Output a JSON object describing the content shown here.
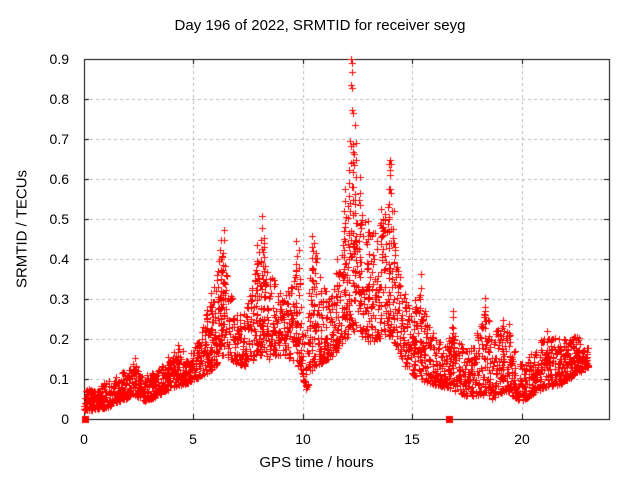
{
  "chart_data": {
    "type": "scatter",
    "title": "Day 196 of 2022, SRMTID for receiver seyg",
    "xlabel": "GPS time / hours",
    "ylabel": "SRMTID / TECUs",
    "xlim": [
      0,
      24
    ],
    "ylim": [
      0,
      0.9
    ],
    "xtick_values": [
      0,
      5,
      10,
      15,
      20
    ],
    "xtick_labels": [
      "0",
      "5",
      "10",
      "15",
      "20"
    ],
    "ytick_values": [
      0,
      0.1,
      0.2,
      0.3,
      0.4,
      0.5,
      0.6,
      0.7,
      0.8,
      0.9
    ],
    "ytick_labels": [
      "0",
      "0.1",
      "0.2",
      "0.3",
      "0.4",
      "0.5",
      "0.6",
      "0.7",
      "0.8",
      "0.9"
    ],
    "grid": true,
    "legend": "none",
    "marker": "plus",
    "marker_color": "#ff0000",
    "grid_color": "#b9b9b9",
    "border_color": "#000000",
    "series": [
      {
        "name": "srmtid-points",
        "marker": "plus",
        "x_start": 0.0,
        "x_end": 23.05,
        "band_envelope": [
          [
            0.0,
            0.02,
            0.075
          ],
          [
            0.6,
            0.025,
            0.08
          ],
          [
            1.1,
            0.03,
            0.095
          ],
          [
            1.6,
            0.045,
            0.115
          ],
          [
            2.0,
            0.05,
            0.13
          ],
          [
            2.35,
            0.06,
            0.145
          ],
          [
            2.7,
            0.045,
            0.105
          ],
          [
            3.1,
            0.05,
            0.115
          ],
          [
            3.6,
            0.065,
            0.14
          ],
          [
            4.1,
            0.08,
            0.17
          ],
          [
            4.45,
            0.085,
            0.175
          ],
          [
            4.8,
            0.09,
            0.16
          ],
          [
            5.1,
            0.1,
            0.185
          ],
          [
            5.45,
            0.11,
            0.23
          ],
          [
            5.8,
            0.12,
            0.3
          ],
          [
            6.1,
            0.14,
            0.38
          ],
          [
            6.35,
            0.16,
            0.44
          ],
          [
            6.6,
            0.15,
            0.33
          ],
          [
            6.95,
            0.14,
            0.28
          ],
          [
            7.3,
            0.13,
            0.27
          ],
          [
            7.65,
            0.14,
            0.32
          ],
          [
            7.95,
            0.16,
            0.42
          ],
          [
            8.2,
            0.16,
            0.46
          ],
          [
            8.45,
            0.15,
            0.38
          ],
          [
            8.8,
            0.16,
            0.33
          ],
          [
            9.15,
            0.16,
            0.3
          ],
          [
            9.5,
            0.15,
            0.35
          ],
          [
            9.8,
            0.13,
            0.42
          ],
          [
            10.05,
            0.09,
            0.25
          ],
          [
            10.15,
            0.07,
            0.18
          ],
          [
            10.35,
            0.11,
            0.4
          ],
          [
            10.55,
            0.13,
            0.44
          ],
          [
            10.9,
            0.14,
            0.33
          ],
          [
            11.25,
            0.15,
            0.31
          ],
          [
            11.6,
            0.17,
            0.38
          ],
          [
            11.95,
            0.2,
            0.5
          ],
          [
            12.25,
            0.22,
            0.58
          ],
          [
            12.5,
            0.22,
            0.56
          ],
          [
            12.8,
            0.2,
            0.5
          ],
          [
            13.1,
            0.19,
            0.46
          ],
          [
            13.45,
            0.2,
            0.48
          ],
          [
            13.8,
            0.21,
            0.52
          ],
          [
            14.05,
            0.2,
            0.5
          ],
          [
            14.35,
            0.17,
            0.38
          ],
          [
            14.7,
            0.13,
            0.31
          ],
          [
            15.05,
            0.11,
            0.28
          ],
          [
            15.4,
            0.1,
            0.32
          ],
          [
            15.75,
            0.09,
            0.24
          ],
          [
            16.1,
            0.085,
            0.21
          ],
          [
            16.5,
            0.08,
            0.19
          ],
          [
            16.85,
            0.075,
            0.24
          ],
          [
            17.2,
            0.06,
            0.19
          ],
          [
            17.55,
            0.055,
            0.17
          ],
          [
            17.95,
            0.06,
            0.21
          ],
          [
            18.3,
            0.06,
            0.28
          ],
          [
            18.65,
            0.05,
            0.21
          ],
          [
            19.0,
            0.06,
            0.235
          ],
          [
            19.35,
            0.07,
            0.235
          ],
          [
            19.75,
            0.05,
            0.16
          ],
          [
            20.1,
            0.045,
            0.13
          ],
          [
            20.5,
            0.06,
            0.17
          ],
          [
            20.9,
            0.075,
            0.2
          ],
          [
            21.3,
            0.08,
            0.215
          ],
          [
            21.7,
            0.085,
            0.2
          ],
          [
            22.1,
            0.095,
            0.2
          ],
          [
            22.5,
            0.115,
            0.21
          ],
          [
            22.8,
            0.12,
            0.2
          ],
          [
            23.05,
            0.13,
            0.19
          ]
        ],
        "spikes": [
          [
            2.35,
            0.08,
            0.15,
            6
          ],
          [
            4.3,
            0.1,
            0.19,
            6
          ],
          [
            5.6,
            0.14,
            0.27,
            8
          ],
          [
            5.85,
            0.15,
            0.32,
            8
          ],
          [
            6.15,
            0.17,
            0.4,
            8
          ],
          [
            6.25,
            0.18,
            0.45,
            12
          ],
          [
            6.38,
            0.18,
            0.47,
            12
          ],
          [
            7.9,
            0.18,
            0.43,
            10
          ],
          [
            8.12,
            0.2,
            0.5,
            12
          ],
          [
            8.22,
            0.18,
            0.46,
            10
          ],
          [
            9.7,
            0.18,
            0.44,
            10
          ],
          [
            9.85,
            0.15,
            0.42,
            8
          ],
          [
            10.42,
            0.15,
            0.46,
            12
          ],
          [
            10.52,
            0.16,
            0.44,
            8
          ],
          [
            11.55,
            0.2,
            0.4,
            8
          ],
          [
            11.9,
            0.25,
            0.55,
            10
          ],
          [
            12.1,
            0.28,
            0.62,
            12
          ],
          [
            12.3,
            0.3,
            0.68,
            12
          ],
          [
            12.42,
            0.32,
            0.74,
            10
          ],
          [
            12.6,
            0.28,
            0.6,
            10
          ],
          [
            13.0,
            0.22,
            0.5,
            8
          ],
          [
            13.6,
            0.25,
            0.52,
            8
          ],
          [
            13.95,
            0.25,
            0.64,
            12
          ],
          [
            14.15,
            0.22,
            0.52,
            8
          ],
          [
            15.1,
            0.12,
            0.3,
            8
          ],
          [
            15.38,
            0.12,
            0.36,
            10
          ],
          [
            16.88,
            0.1,
            0.27,
            10
          ],
          [
            18.32,
            0.08,
            0.3,
            10
          ],
          [
            18.55,
            0.07,
            0.24,
            6
          ],
          [
            19.15,
            0.08,
            0.25,
            8
          ],
          [
            19.45,
            0.08,
            0.24,
            6
          ],
          [
            21.2,
            0.1,
            0.22,
            6
          ],
          [
            22.4,
            0.12,
            0.21,
            6
          ]
        ],
        "outlier_points": [
          [
            12.22,
            0.9
          ],
          [
            12.26,
            0.89
          ],
          [
            12.24,
            0.868
          ],
          [
            12.21,
            0.836
          ],
          [
            12.27,
            0.828
          ],
          [
            12.23,
            0.772
          ],
          [
            12.28,
            0.764
          ],
          [
            12.14,
            0.695
          ],
          [
            12.19,
            0.683
          ],
          [
            12.28,
            0.668
          ],
          [
            12.33,
            0.662
          ],
          [
            12.21,
            0.64
          ],
          [
            12.36,
            0.635
          ],
          [
            11.93,
            0.575
          ],
          [
            13.97,
            0.648
          ],
          [
            14.03,
            0.638
          ],
          [
            14.0,
            0.623
          ],
          [
            13.95,
            0.576
          ],
          [
            14.05,
            0.565
          ],
          [
            13.9,
            0.53
          ],
          [
            14.08,
            0.52
          ]
        ]
      },
      {
        "name": "zero-line-markers",
        "marker": "square",
        "points": [
          [
            0.04,
            0
          ],
          [
            16.67,
            0
          ]
        ]
      }
    ]
  }
}
